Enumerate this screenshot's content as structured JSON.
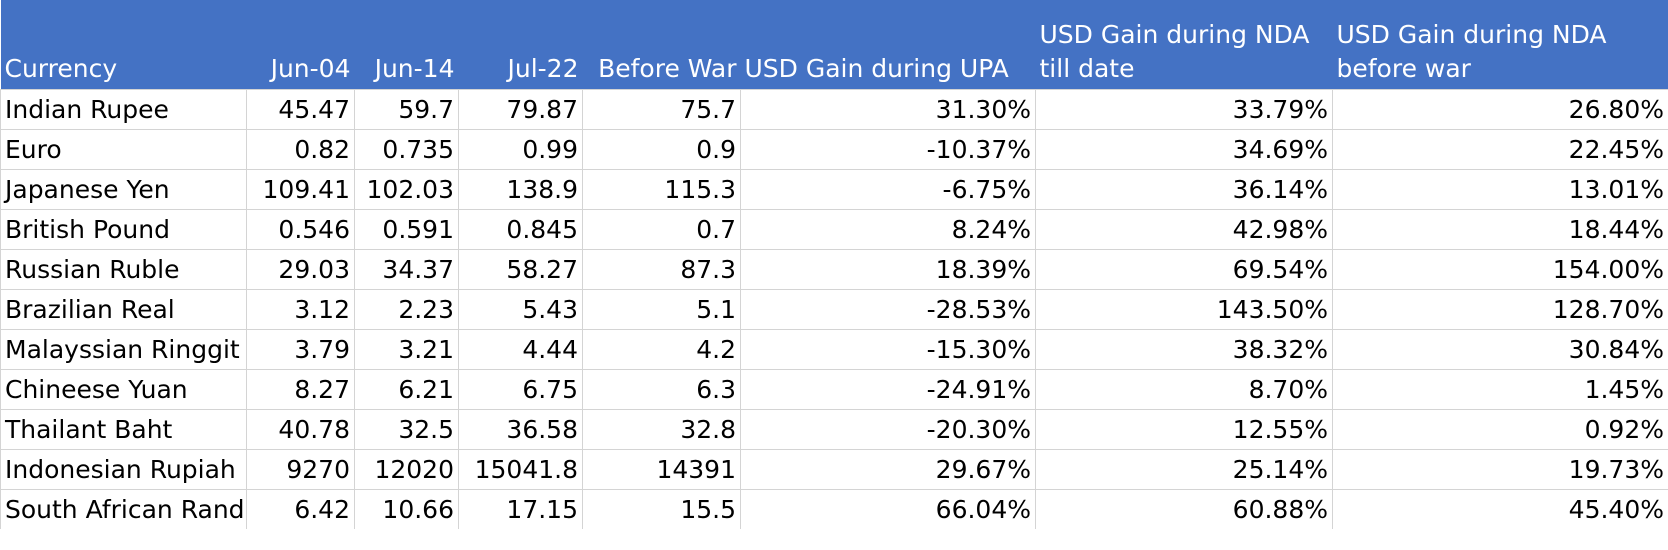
{
  "table": {
    "headers": [
      "Currency",
      "Jun-04",
      "Jun-14",
      "Jul-22",
      "Before War",
      "USD Gain during UPA",
      "USD Gain during NDA till date",
      "USD Gain during NDA before war"
    ],
    "rows": [
      [
        "Indian Rupee",
        "45.47",
        "59.7",
        "79.87",
        "75.7",
        "31.30%",
        "33.79%",
        "26.80%"
      ],
      [
        "Euro",
        "0.82",
        "0.735",
        "0.99",
        "0.9",
        "-10.37%",
        "34.69%",
        "22.45%"
      ],
      [
        "Japanese Yen",
        "109.41",
        "102.03",
        "138.9",
        "115.3",
        "-6.75%",
        "36.14%",
        "13.01%"
      ],
      [
        "British Pound",
        "0.546",
        "0.591",
        "0.845",
        "0.7",
        "8.24%",
        "42.98%",
        "18.44%"
      ],
      [
        "Russian Ruble",
        "29.03",
        "34.37",
        "58.27",
        "87.3",
        "18.39%",
        "69.54%",
        "154.00%"
      ],
      [
        "Brazilian Real",
        "3.12",
        "2.23",
        "5.43",
        "5.1",
        "-28.53%",
        "143.50%",
        "128.70%"
      ],
      [
        "Malayssian Ringgit",
        "3.79",
        "3.21",
        "4.44",
        "4.2",
        "-15.30%",
        "38.32%",
        "30.84%"
      ],
      [
        "Chineese Yuan",
        "8.27",
        "6.21",
        "6.75",
        "6.3",
        "-24.91%",
        "8.70%",
        "1.45%"
      ],
      [
        "Thailant Baht",
        "40.78",
        "32.5",
        "36.58",
        "32.8",
        "-20.30%",
        "12.55%",
        "0.92%"
      ],
      [
        "Indonesian Rupiah",
        "9270",
        "12020",
        "15041.8",
        "14391",
        "29.67%",
        "25.14%",
        "19.73%"
      ],
      [
        "South African Rand",
        "6.42",
        "10.66",
        "17.15",
        "15.5",
        "66.04%",
        "60.88%",
        "45.40%"
      ]
    ]
  },
  "colors": {
    "header_bg": "#4472c4",
    "header_text": "#ffffff",
    "gridline": "#d4d4d4"
  }
}
